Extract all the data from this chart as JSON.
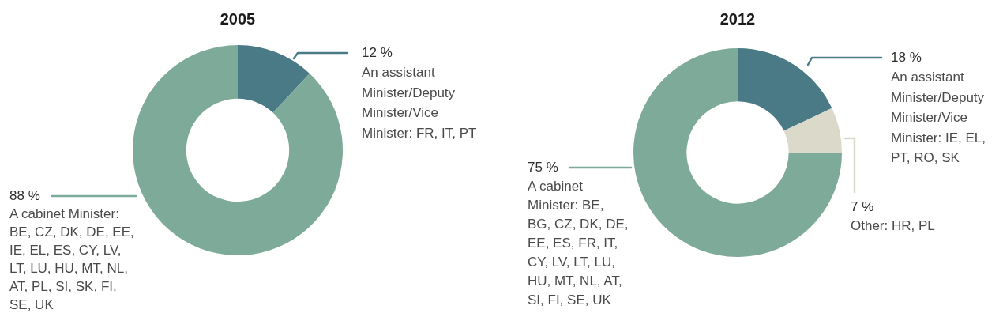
{
  "chart_data": [
    {
      "type": "donut",
      "title": "2005",
      "categories": [
        "An assistant Minister/Deputy Minister/Vice Minister: FR, IT, PT",
        "A cabinet Minister: BE, CZ, DK, DE, EE, IE, EL, ES, CY, LV, LT, LU, HU, MT, NL, AT, PL, SI, SK, FI, SE, UK"
      ],
      "values": [
        12,
        88
      ],
      "value_labels": [
        "12 %",
        "88 %"
      ],
      "colors": [
        "#497a86",
        "#7eaa9a"
      ]
    },
    {
      "type": "donut",
      "title": "2012",
      "categories": [
        "An assistant Minister/Deputy Minister/Vice Minister: IE, EL, PT, RO, SK",
        "Other: HR, PL",
        "A cabinet Minister: BE, BG, CZ, DK, DE, EE, ES, FR, IT, CY, LV, LT, LU, HU, MT, NL, AT, SI, FI, SE, UK"
      ],
      "values": [
        18,
        7,
        75
      ],
      "value_labels": [
        "18 %",
        "7 %",
        "75 %"
      ],
      "colors": [
        "#497a86",
        "#dbd9ca",
        "#7eaa9a"
      ]
    }
  ]
}
